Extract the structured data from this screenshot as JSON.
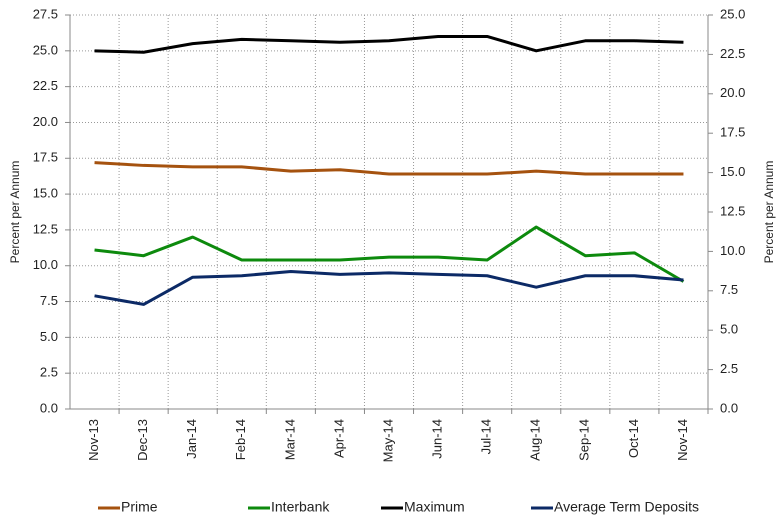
{
  "chart_data": {
    "type": "line",
    "ylabel": "Percent per Annum",
    "y2label": "Percent per Annum",
    "categories": [
      "Nov-13",
      "Dec-13",
      "Jan-14",
      "Feb-14",
      "Mar-14",
      "Apr-14",
      "May-14",
      "Jun-14",
      "Jul-14",
      "Aug-14",
      "Sep-14",
      "Oct-14",
      "Nov-14"
    ],
    "series": [
      {
        "name": "Prime",
        "color": "#a5520f",
        "values": [
          17.2,
          17.0,
          16.9,
          16.9,
          16.6,
          16.7,
          16.4,
          16.4,
          16.4,
          16.6,
          16.4,
          16.4,
          16.4
        ]
      },
      {
        "name": "Interbank",
        "color": "#0d8a0d",
        "values": [
          11.1,
          10.7,
          12.0,
          10.4,
          10.4,
          10.4,
          10.6,
          10.6,
          10.4,
          12.7,
          10.7,
          10.9,
          8.9
        ]
      },
      {
        "name": "Maximum",
        "color": "#000000",
        "values": [
          25.0,
          24.9,
          25.5,
          25.8,
          25.7,
          25.6,
          25.7,
          26.0,
          26.0,
          25.0,
          25.7,
          25.7,
          25.6
        ]
      },
      {
        "name": "Average Term Deposits",
        "color": "#0c2a66",
        "values": [
          7.9,
          7.3,
          9.2,
          9.3,
          9.6,
          9.4,
          9.5,
          9.4,
          9.3,
          8.5,
          9.3,
          9.3,
          9.0
        ]
      }
    ],
    "ylim": [
      0,
      27.5
    ],
    "yticks": [
      {
        "value": 0,
        "label": "0.0"
      },
      2.5,
      {
        "value": 5,
        "label": "5.0"
      },
      7.5,
      {
        "value": 10,
        "label": "10.0"
      },
      12.5,
      {
        "value": 15,
        "label": "15.0"
      },
      17.5,
      {
        "value": 20,
        "label": "20.0"
      },
      22.5,
      {
        "value": 25,
        "label": "25.0"
      },
      27.5
    ],
    "y2lim": [
      0,
      25
    ],
    "y2ticks": [
      {
        "value": 0,
        "label": "0.0"
      },
      2.5,
      {
        "value": 5,
        "label": "5.0"
      },
      7.5,
      {
        "value": 10,
        "label": "10.0"
      },
      12.5,
      {
        "value": 15,
        "label": "15.0"
      },
      17.5,
      {
        "value": 20,
        "label": "20.0"
      },
      22.5,
      {
        "value": 25,
        "label": "25.0"
      }
    ],
    "grid": true,
    "legend": "bottom"
  }
}
